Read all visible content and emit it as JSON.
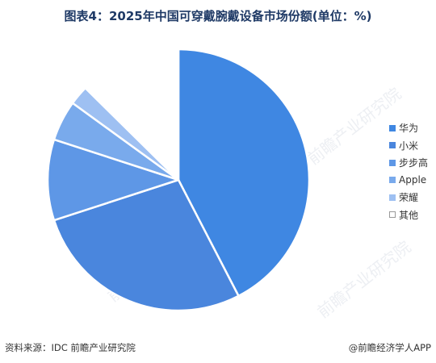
{
  "title": "图表4：2025年中国可穿戴腕戴设备市场份额(单位：%)",
  "chart_data": {
    "type": "pie",
    "categories": [
      "华为",
      "小米",
      "步步高",
      "Apple",
      "荣耀",
      "其他"
    ],
    "values": [
      42.4,
      27.6,
      10.0,
      5.0,
      2.4,
      12.6
    ],
    "colors": [
      "#3f87e2",
      "#4a86dd",
      "#5e97e6",
      "#79aaec",
      "#9ec0f2",
      "#ffffff"
    ],
    "start_angle_deg": 0,
    "direction": "clockwise",
    "legend_position": "right"
  },
  "source_text": "资料来源：IDC 前瞻产业研究院",
  "credit_text": "@前瞻经济学人APP",
  "watermark_text": "前瞻产业研究院"
}
